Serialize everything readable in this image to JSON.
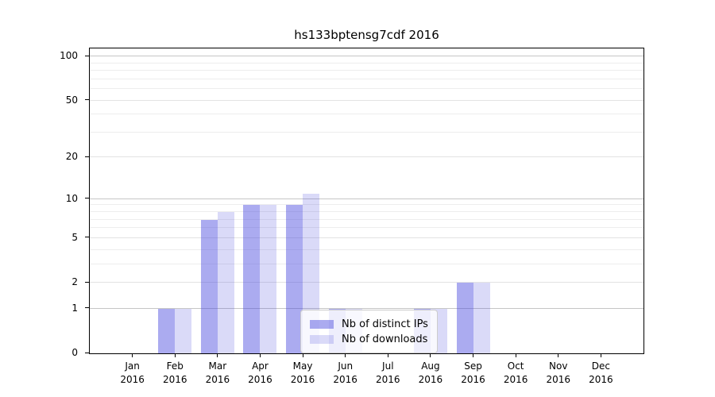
{
  "chart_data": {
    "type": "bar",
    "title": "hs133bptensg7cdf 2016",
    "categories": [
      "Jan",
      "Feb",
      "Mar",
      "Apr",
      "May",
      "Jun",
      "Jul",
      "Aug",
      "Sep",
      "Oct",
      "Nov",
      "Dec"
    ],
    "x_tick_year": "2016",
    "series": [
      {
        "name": "Nb of distinct IPs",
        "color": "rgba(68,68,221,0.45)",
        "values": [
          0,
          1,
          7,
          9,
          9,
          1,
          0,
          1,
          2,
          0,
          0,
          0
        ]
      },
      {
        "name": "Nb of downloads",
        "color": "rgba(68,68,221,0.20)",
        "values": [
          0,
          1,
          8,
          9,
          11,
          1,
          0,
          1,
          2,
          0,
          0,
          0
        ]
      }
    ],
    "y_scale": "log10(1+value)",
    "ylim": [
      0,
      113.5
    ],
    "y_major_ticks": [
      0,
      1,
      2,
      5,
      10,
      20,
      50,
      100
    ],
    "y_tick_labels": [
      "0",
      "1",
      "2",
      "5",
      "10",
      "20",
      "50",
      "100"
    ],
    "y_strong_grid_values": [
      1,
      10,
      100
    ],
    "y_mid_grid_values": [
      2,
      5,
      20,
      50
    ],
    "y_minor_grid_values": [
      3,
      4,
      6,
      7,
      8,
      9,
      30,
      40,
      60,
      70,
      80,
      90
    ],
    "grid": true,
    "legend_position": "lower-center",
    "colors": {
      "grid_strong": "#c6c6c6",
      "grid_mid": "#e3e3e3",
      "grid_minor": "#ededed",
      "axis": "#000000",
      "legend_border": "#cccccc"
    }
  }
}
